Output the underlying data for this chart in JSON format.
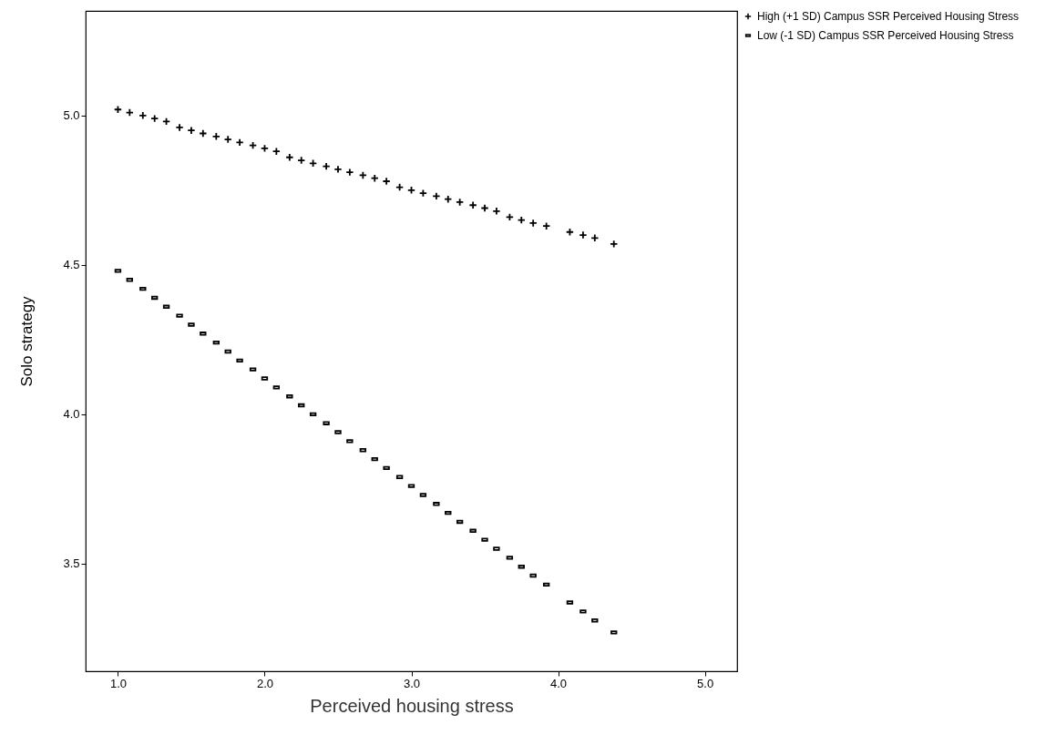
{
  "chart_data": {
    "type": "scatter",
    "xlabel": "Perceived housing stress",
    "ylabel": "Solo strategy",
    "xlim": [
      0.78,
      5.22
    ],
    "ylim": [
      3.14,
      5.35
    ],
    "xticks": [
      {
        "value": 1,
        "label": "1.0"
      },
      {
        "value": 2,
        "label": "2.0"
      },
      {
        "value": 3,
        "label": "3.0"
      },
      {
        "value": 4,
        "label": "4.0"
      },
      {
        "value": 5,
        "label": "5.0"
      }
    ],
    "yticks": [
      {
        "value": 3.5,
        "label": "3.5"
      },
      {
        "value": 4,
        "label": "4.0"
      },
      {
        "value": 4.5,
        "label": "4.5"
      },
      {
        "value": 5,
        "label": "5.0"
      }
    ],
    "grid": false,
    "legend": "top right",
    "x": [
      1.0,
      1.08,
      1.17,
      1.25,
      1.33,
      1.42,
      1.5,
      1.58,
      1.67,
      1.75,
      1.83,
      1.92,
      2.0,
      2.08,
      2.17,
      2.25,
      2.33,
      2.42,
      2.5,
      2.58,
      2.67,
      2.75,
      2.83,
      2.92,
      3.0,
      3.08,
      3.17,
      3.25,
      3.33,
      3.42,
      3.5,
      3.58,
      3.67,
      3.75,
      3.83,
      3.92,
      4.08,
      4.17,
      4.25,
      4.38
    ],
    "series": [
      {
        "name": "High (+1 SD) Campus SSR Perceived Housing Stress",
        "color": "#000000",
        "marker": "cross",
        "values": [
          5.02,
          5.01,
          5.0,
          4.99,
          4.98,
          4.96,
          4.95,
          4.94,
          4.93,
          4.92,
          4.91,
          4.9,
          4.89,
          4.88,
          4.86,
          4.85,
          4.84,
          4.83,
          4.82,
          4.81,
          4.8,
          4.79,
          4.78,
          4.76,
          4.75,
          4.74,
          4.73,
          4.72,
          4.71,
          4.7,
          4.69,
          4.68,
          4.66,
          4.65,
          4.64,
          4.63,
          4.61,
          4.6,
          4.59,
          4.57
        ]
      },
      {
        "name": "Low (-1 SD) Campus SSR Perceived Housing Stress",
        "color": "#000000",
        "values": [
          4.48,
          4.45,
          4.42,
          4.39,
          4.36,
          4.33,
          4.3,
          4.27,
          4.24,
          4.21,
          4.18,
          4.15,
          4.12,
          4.09,
          4.06,
          4.03,
          4.0,
          3.97,
          3.94,
          3.91,
          3.88,
          3.85,
          3.82,
          3.79,
          3.76,
          3.73,
          3.7,
          3.67,
          3.64,
          3.61,
          3.58,
          3.55,
          3.52,
          3.49,
          3.46,
          3.43,
          3.37,
          3.34,
          3.31,
          3.27
        ]
      }
    ]
  }
}
